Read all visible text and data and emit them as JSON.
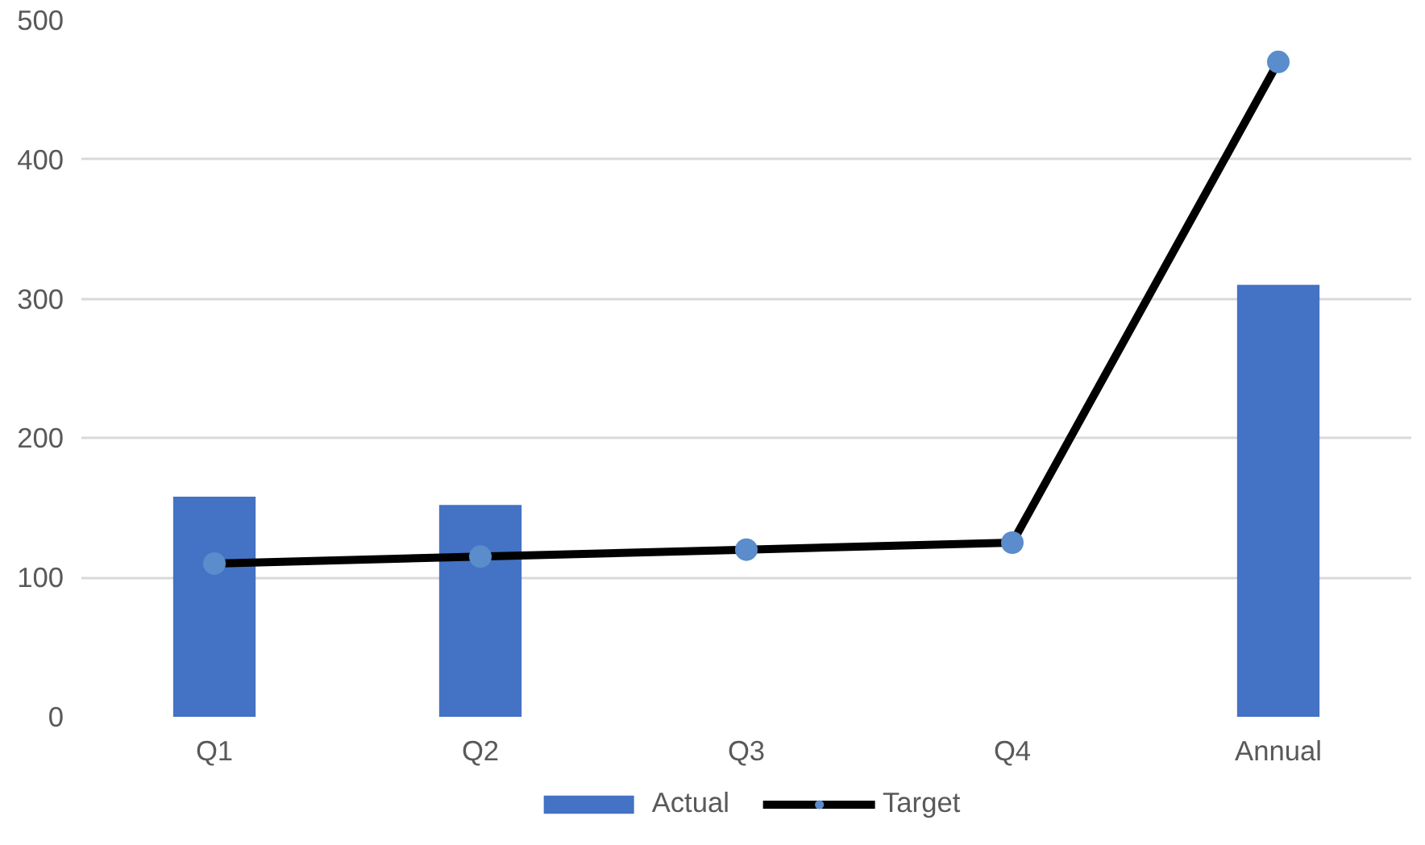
{
  "chart_data": {
    "type": "bar",
    "categories": [
      "Q1",
      "Q2",
      "Q3",
      "Q4",
      "Annual"
    ],
    "series": [
      {
        "name": "Actual",
        "color": "#4472c4",
        "values": [
          158,
          152,
          null,
          null,
          310
        ]
      },
      {
        "name": "Target",
        "type": "line",
        "color": "#000000",
        "colors": [
          "#5b8ccb",
          "#5b8ccb",
          "#5b8ccb",
          "#5b8ccb",
          "#5b8ccb"
        ],
        "marker": "circle",
        "values": [
          110,
          115,
          120,
          125,
          470
        ]
      }
    ],
    "ylim": [
      0,
      500
    ],
    "yticks": [
      0,
      100,
      200,
      300,
      400,
      500
    ],
    "grid": "y",
    "legend": "bottom"
  }
}
